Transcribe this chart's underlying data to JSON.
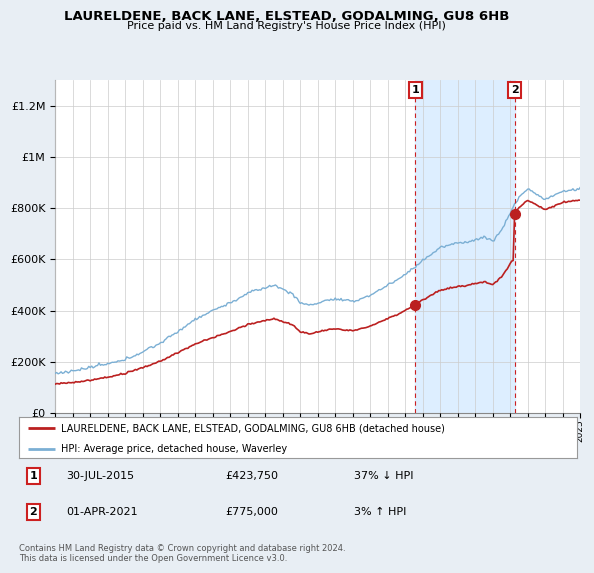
{
  "title": "LAURELDENE, BACK LANE, ELSTEAD, GODALMING, GU8 6HB",
  "subtitle": "Price paid vs. HM Land Registry's House Price Index (HPI)",
  "ylim": [
    0,
    1300000
  ],
  "yticks": [
    0,
    200000,
    400000,
    600000,
    800000,
    1000000,
    1200000
  ],
  "ytick_labels": [
    "£0",
    "£200K",
    "£400K",
    "£600K",
    "£800K",
    "£1M",
    "£1.2M"
  ],
  "hpi_color": "#7bafd4",
  "price_color": "#bb2020",
  "sale1_date": "30-JUL-2015",
  "sale1_price_label": "£423,750",
  "sale1_price_val": 423750,
  "sale1_hpi_pct": "37% ↓ HPI",
  "sale2_date": "01-APR-2021",
  "sale2_price_label": "£775,000",
  "sale2_price_val": 775000,
  "sale2_hpi_pct": "3% ↑ HPI",
  "vline_color": "#cc2020",
  "vline_x1": 2015.58,
  "vline_x2": 2021.25,
  "shade_color": "#ddeeff",
  "background_color": "#e8eef4",
  "plot_bg": "#ffffff",
  "legend_label_price": "LAURELDENE, BACK LANE, ELSTEAD, GODALMING, GU8 6HB (detached house)",
  "legend_label_hpi": "HPI: Average price, detached house, Waverley",
  "footer": "Contains HM Land Registry data © Crown copyright and database right 2024.\nThis data is licensed under the Open Government Licence v3.0.",
  "xmin": 1995,
  "xmax": 2025
}
